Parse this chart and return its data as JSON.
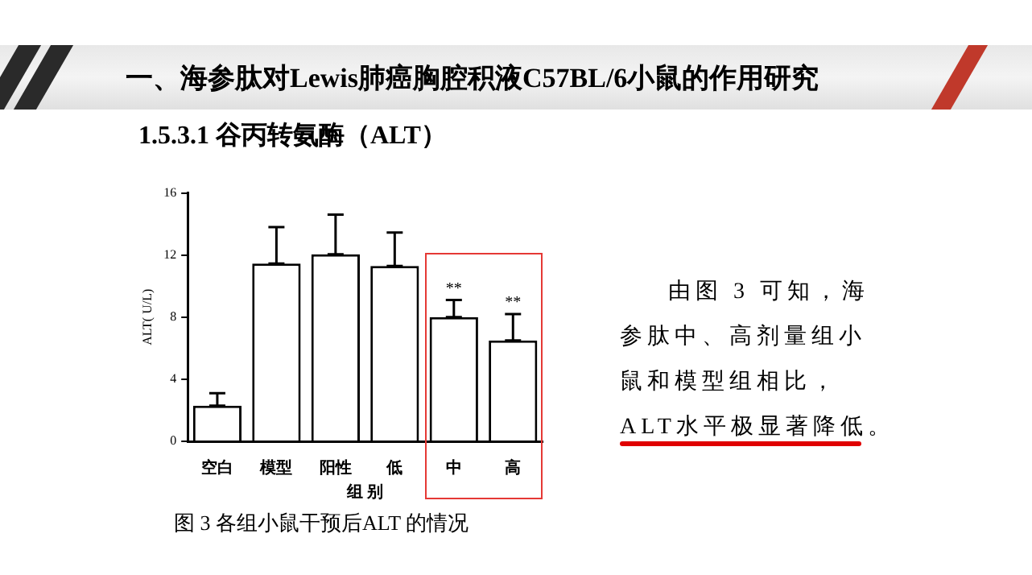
{
  "chart_data": {
    "type": "bar",
    "title": "一、海参肽对Lewis肺癌胸腔积液C57BL/6小鼠的作用研究",
    "subtitle": "1.5.3.1 谷丙转氨酶（ALT）",
    "xlabel": "组 别",
    "ylabel": "ALT( U/L)",
    "categories": [
      "空白",
      "模型",
      "阳性",
      "低",
      "中",
      "高"
    ],
    "values": [
      2.3,
      11.45,
      12.05,
      11.3,
      8.0,
      6.5
    ],
    "errors": [
      [
        2.3,
        3.1
      ],
      [
        11.45,
        13.8
      ],
      [
        12.05,
        14.6
      ],
      [
        11.3,
        13.45
      ],
      [
        8.0,
        9.1
      ],
      [
        6.5,
        8.2
      ]
    ],
    "color": "#ffffff",
    "ylim": [
      0,
      16
    ],
    "yticks": [
      0,
      4,
      8,
      12,
      16
    ],
    "grid": false,
    "legend": false,
    "annotations": [
      {
        "text": "**",
        "x": "中",
        "y": 9.1
      },
      {
        "text": "**",
        "x": "高",
        "y": 8.2
      },
      "图 3 各组小鼠干预后ALT 的情况",
      "由图 3 可知，海",
      "参肽中、高剂量组小",
      "鼠和模型组相比，",
      "ALT水平极显著降低。"
    ]
  }
}
